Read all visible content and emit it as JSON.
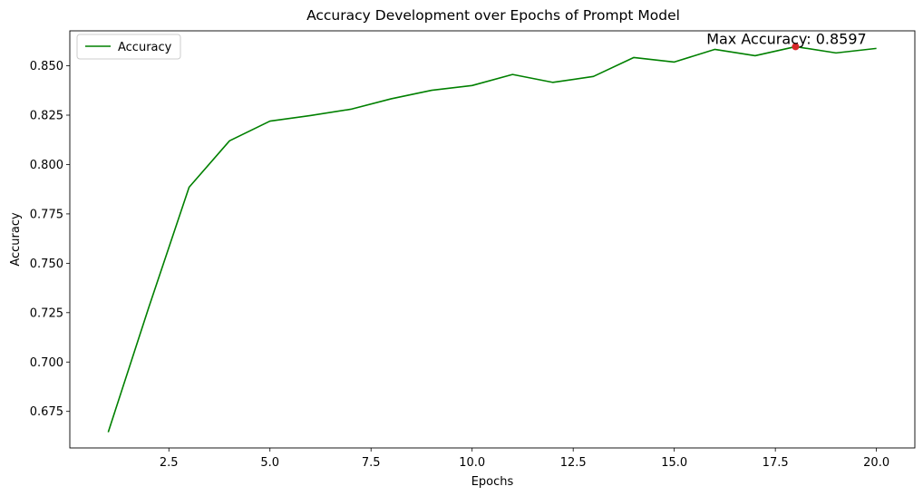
{
  "chart_data": {
    "type": "line",
    "title": "Accuracy Development over Epochs of Prompt Model",
    "xlabel": "Epochs",
    "ylabel": "Accuracy",
    "xlim": [
      0.05,
      20.95
    ],
    "ylim": [
      0.6565,
      0.8677
    ],
    "xticks": [
      2.5,
      5.0,
      7.5,
      10.0,
      12.5,
      15.0,
      17.5,
      20.0
    ],
    "xtick_labels": [
      "2.5",
      "5.0",
      "7.5",
      "10.0",
      "12.5",
      "15.0",
      "17.5",
      "20.0"
    ],
    "yticks": [
      0.675,
      0.7,
      0.725,
      0.75,
      0.775,
      0.8,
      0.825,
      0.85
    ],
    "ytick_labels": [
      "0.675",
      "0.700",
      "0.725",
      "0.750",
      "0.775",
      "0.800",
      "0.825",
      "0.850"
    ],
    "grid": false,
    "legend_position": "top-left",
    "series": [
      {
        "name": "Accuracy",
        "color": "#008000",
        "x": [
          1,
          2,
          3,
          4,
          5,
          6,
          7,
          8,
          9,
          10,
          11,
          12,
          13,
          14,
          15,
          16,
          17,
          18,
          19,
          20
        ],
        "y": [
          0.6645,
          0.7275,
          0.7885,
          0.812,
          0.822,
          0.8248,
          0.828,
          0.8333,
          0.8376,
          0.84,
          0.8456,
          0.8416,
          0.8446,
          0.8542,
          0.8519,
          0.8583,
          0.8551,
          0.8597,
          0.8565,
          0.8588
        ]
      }
    ],
    "highlight": {
      "x": 18,
      "y": 0.8597,
      "color": "#d62728"
    },
    "annotation": "Max Accuracy: 0.8597"
  }
}
